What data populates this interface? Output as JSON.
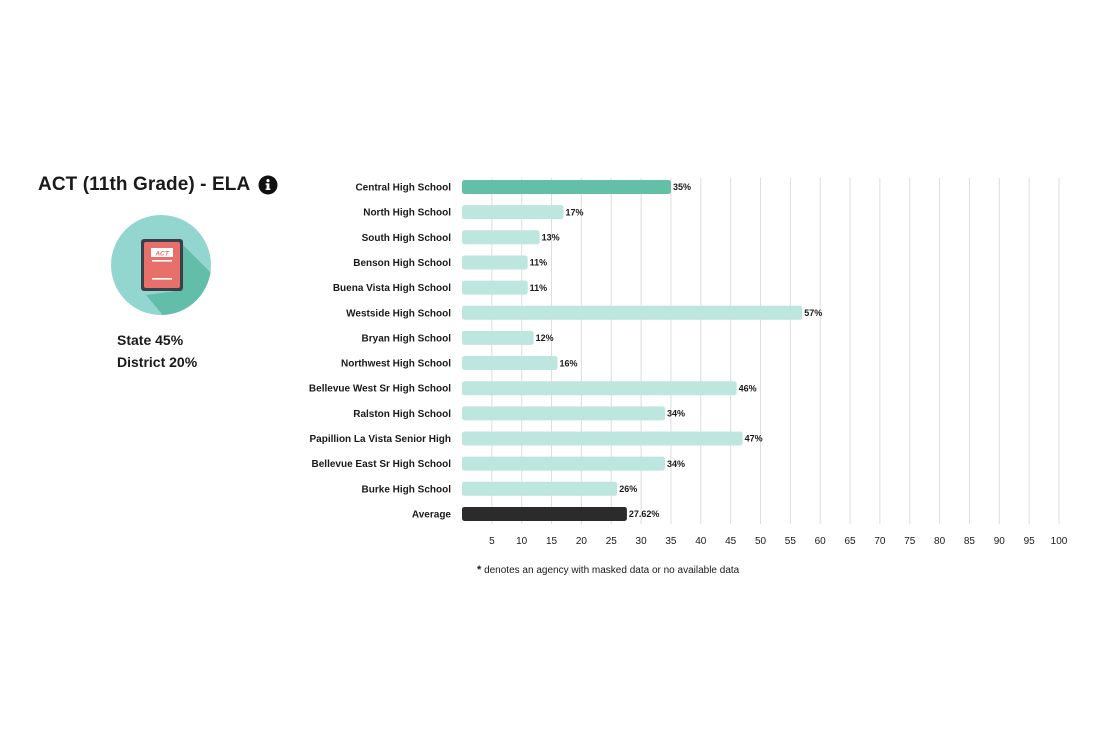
{
  "header": {
    "title": "ACT (11th Grade) - ELA",
    "info_icon": "info-icon"
  },
  "badge": {
    "icon": "act-test-booklet-icon",
    "booklet_text": "ACT",
    "circle_color": "#93d6cf",
    "booklet_color": "#e8706b"
  },
  "stats": {
    "state": "State 45%",
    "district": "District 20%"
  },
  "footnote": {
    "star": "*",
    "text": "denotes an agency with masked data or no available data"
  },
  "colors": {
    "highlight": "#64bfa7",
    "normal": "#bce6de",
    "average": "#2b2b2b",
    "grid": "#dddddd"
  },
  "chart_data": {
    "type": "bar",
    "orientation": "horizontal",
    "categories": [
      "Central High School",
      "North High School",
      "South High School",
      "Benson High School",
      "Buena Vista High School",
      "Westside High School",
      "Bryan High School",
      "Northwest High School",
      "Bellevue West Sr High School",
      "Ralston High School",
      "Papillion La Vista Senior High",
      "Bellevue East Sr High School",
      "Burke High School",
      "Average"
    ],
    "values": [
      35,
      17,
      13,
      11,
      11,
      57,
      12,
      16,
      46,
      34,
      47,
      34,
      26,
      27.62
    ],
    "value_labels": [
      "35%",
      "17%",
      "13%",
      "11%",
      "11%",
      "57%",
      "12%",
      "16%",
      "46%",
      "34%",
      "47%",
      "34%",
      "26%",
      "27.62%"
    ],
    "bar_kind": [
      "highlight",
      "normal",
      "normal",
      "normal",
      "normal",
      "normal",
      "normal",
      "normal",
      "normal",
      "normal",
      "normal",
      "normal",
      "normal",
      "average"
    ],
    "xlim": [
      0,
      100
    ],
    "xticks": [
      5,
      10,
      15,
      20,
      25,
      30,
      35,
      40,
      45,
      50,
      55,
      60,
      65,
      70,
      75,
      80,
      85,
      90,
      95,
      100
    ],
    "xtick_labels": [
      "5",
      "10",
      "15",
      "20",
      "25",
      "30",
      "35",
      "40",
      "45",
      "50",
      "55",
      "60",
      "65",
      "70",
      "75",
      "80",
      "85",
      "90",
      "95",
      "100"
    ],
    "grid": true,
    "title": "",
    "xlabel": "",
    "ylabel": ""
  }
}
